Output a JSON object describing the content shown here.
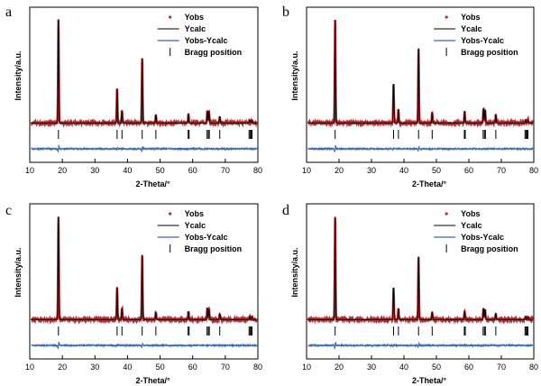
{
  "colors": {
    "yobs": "#c0262d",
    "ycalc": "#000000",
    "diff": "#3b66b0",
    "bragg": "#000000"
  },
  "chart_data": [
    {
      "type": "line",
      "panel_label": "a",
      "xlabel": "2-Theta/°",
      "ylabel": "Intensity/a.u.",
      "xlim": [
        10,
        80
      ],
      "xticks": [
        10,
        20,
        30,
        40,
        50,
        60,
        70,
        80
      ],
      "legend_position": "top-right",
      "legend": [
        "Yobs",
        "Ycalc",
        "Yobs-Ycalc",
        "Bragg position"
      ],
      "peaks": [
        {
          "two_theta": 18.8,
          "intensity": 100
        },
        {
          "two_theta": 36.8,
          "intensity": 33
        },
        {
          "two_theta": 38.3,
          "intensity": 12
        },
        {
          "two_theta": 44.5,
          "intensity": 63
        },
        {
          "two_theta": 48.7,
          "intensity": 8
        },
        {
          "two_theta": 58.7,
          "intensity": 9
        },
        {
          "two_theta": 64.5,
          "intensity": 12
        },
        {
          "two_theta": 65.0,
          "intensity": 11
        },
        {
          "two_theta": 68.3,
          "intensity": 6
        },
        {
          "two_theta": 77.5,
          "intensity": 3
        },
        {
          "two_theta": 78.2,
          "intensity": 3
        }
      ],
      "bragg_positions": [
        18.8,
        36.8,
        38.3,
        44.5,
        48.7,
        58.6,
        58.9,
        64.4,
        64.8,
        65.1,
        68.3,
        77.3,
        77.6,
        77.9,
        78.2
      ]
    },
    {
      "type": "line",
      "panel_label": "b",
      "xlabel": "2-Theta/°",
      "ylabel": "Intensity/a.u.",
      "xlim": [
        10,
        80
      ],
      "xticks": [
        10,
        20,
        30,
        40,
        50,
        60,
        70,
        80
      ],
      "legend_position": "top-right",
      "legend": [
        "Yobs",
        "Ycalc",
        "Yobs-Ycalc",
        "Bragg position"
      ],
      "peaks": [
        {
          "two_theta": 18.8,
          "intensity": 100
        },
        {
          "two_theta": 36.8,
          "intensity": 38
        },
        {
          "two_theta": 38.3,
          "intensity": 13
        },
        {
          "two_theta": 44.5,
          "intensity": 72
        },
        {
          "two_theta": 48.7,
          "intensity": 10
        },
        {
          "two_theta": 58.7,
          "intensity": 11
        },
        {
          "two_theta": 64.5,
          "intensity": 14
        },
        {
          "two_theta": 65.0,
          "intensity": 13
        },
        {
          "two_theta": 68.3,
          "intensity": 8
        },
        {
          "two_theta": 77.5,
          "intensity": 3
        },
        {
          "two_theta": 78.2,
          "intensity": 3
        }
      ],
      "bragg_positions": [
        18.8,
        36.8,
        38.3,
        44.5,
        48.7,
        58.6,
        58.9,
        64.4,
        64.8,
        65.1,
        68.3,
        77.3,
        77.6,
        77.9,
        78.2
      ]
    },
    {
      "type": "line",
      "panel_label": "c",
      "xlabel": "2-Theta/°",
      "ylabel": "Intensity/a.u.",
      "xlim": [
        10,
        80
      ],
      "xticks": [
        10,
        20,
        30,
        40,
        50,
        60,
        70,
        80
      ],
      "legend_position": "top-right",
      "legend": [
        "Yobs",
        "Ycalc",
        "Yobs-Ycalc",
        "Bragg position"
      ],
      "peaks": [
        {
          "two_theta": 18.8,
          "intensity": 100
        },
        {
          "two_theta": 36.8,
          "intensity": 31
        },
        {
          "two_theta": 38.3,
          "intensity": 11
        },
        {
          "two_theta": 44.5,
          "intensity": 63
        },
        {
          "two_theta": 48.7,
          "intensity": 7
        },
        {
          "two_theta": 58.7,
          "intensity": 8
        },
        {
          "two_theta": 64.5,
          "intensity": 11
        },
        {
          "two_theta": 65.0,
          "intensity": 10
        },
        {
          "two_theta": 68.3,
          "intensity": 6
        },
        {
          "two_theta": 77.5,
          "intensity": 3
        },
        {
          "two_theta": 78.2,
          "intensity": 3
        }
      ],
      "bragg_positions": [
        18.8,
        36.8,
        38.3,
        44.5,
        48.7,
        58.6,
        58.9,
        64.4,
        64.8,
        65.1,
        68.3,
        77.3,
        77.6,
        77.9,
        78.2
      ]
    },
    {
      "type": "line",
      "panel_label": "d",
      "xlabel": "2-Theta/°",
      "ylabel": "Intensity/a.u.",
      "xlim": [
        10,
        80
      ],
      "xticks": [
        10,
        20,
        30,
        40,
        50,
        60,
        70,
        80
      ],
      "legend_position": "top-right",
      "legend": [
        "Yobs",
        "Ycalc",
        "Yobs-Ycalc",
        "Bragg position"
      ],
      "peaks": [
        {
          "two_theta": 18.8,
          "intensity": 100
        },
        {
          "two_theta": 36.8,
          "intensity": 31
        },
        {
          "two_theta": 38.3,
          "intensity": 11
        },
        {
          "two_theta": 44.5,
          "intensity": 61
        },
        {
          "two_theta": 48.7,
          "intensity": 7
        },
        {
          "two_theta": 58.7,
          "intensity": 8
        },
        {
          "two_theta": 64.5,
          "intensity": 11
        },
        {
          "two_theta": 65.0,
          "intensity": 10
        },
        {
          "two_theta": 68.3,
          "intensity": 6
        },
        {
          "two_theta": 77.5,
          "intensity": 3
        },
        {
          "two_theta": 78.2,
          "intensity": 3
        }
      ],
      "bragg_positions": [
        18.8,
        36.8,
        38.3,
        44.5,
        48.7,
        58.6,
        58.9,
        64.4,
        64.8,
        65.1,
        68.3,
        77.3,
        77.6,
        77.9,
        78.2
      ]
    }
  ]
}
